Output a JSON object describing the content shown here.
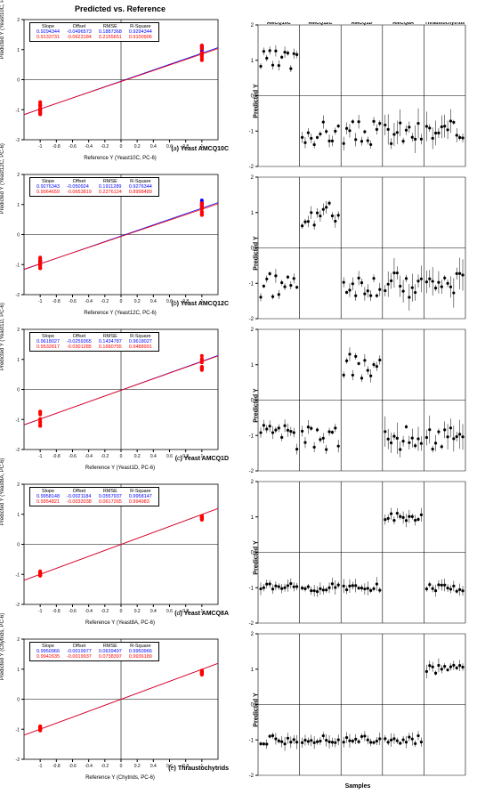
{
  "main_title": "Predicted vs. Reference",
  "left_panels": [
    {
      "id": "a",
      "name": "Yeast AMCQ10C",
      "ylabel": "Predicted Y (Yeast10C, PC-6)",
      "xlabel": "Reference Y (Yeast10C, PC-6)",
      "stats": {
        "headers": [
          "Slope",
          "Offset",
          "RMSE",
          "R-Square"
        ],
        "blue": [
          "0.9294344",
          "-0.0496573",
          "0.1887368",
          "0.9294344"
        ],
        "red": [
          "0.9133731",
          "-0.0623184",
          "0.2155651",
          "0.9100906"
        ]
      }
    },
    {
      "id": "b",
      "name": "Yeast AMCQ12C",
      "ylabel": "Predicted Y (Yeast12C, PC-6)",
      "xlabel": "Reference Y (Yeast12C, PC-6)",
      "stats": {
        "headers": [
          "Slope",
          "Offset",
          "RMSE",
          "R-Square"
        ],
        "blue": [
          "0.9276343",
          "-0.050924",
          "0.1911289",
          "0.9276344"
        ],
        "red": [
          "0.9064659",
          "-0.0653819",
          "0.2276124",
          "0.8998489"
        ]
      }
    },
    {
      "id": "c",
      "name": "Yeast AMCQ1D",
      "ylabel": "Predicted Y (Yeast1D, PC-6)",
      "xlabel": "Reference Y (Yeast1D, PC-6)",
      "stats": {
        "headers": [
          "Slope",
          "Offset",
          "RMSE",
          "R-Square"
        ],
        "blue": [
          "0.9618027",
          "-0.0259365",
          "0.1434787",
          "0.9618027"
        ],
        "red": [
          "0.9532817",
          "-0.0301285",
          "0.1690755",
          "0.9488991"
        ]
      }
    },
    {
      "id": "d",
      "name": "Yeast AMCQ8A",
      "ylabel": "Predicted Y (Yeast8A, PC-6)",
      "xlabel": "Reference Y (Yeast8A, PC-6)",
      "stats": {
        "headers": [
          "Slope",
          "Offset",
          "RMSE",
          "R-Square"
        ],
        "blue": [
          "0.9958148",
          "-0.0021184",
          "0.0557937",
          "0.9958147"
        ],
        "red": [
          "0.9954821",
          "-0.0033038",
          "0.0617265",
          "0.994983"
        ]
      }
    },
    {
      "id": "e",
      "name": "Thraustochytrids",
      "ylabel": "Predicted Y (Chytrids, PC-6)",
      "xlabel": "Reference Y (Chytrids, PC-6)",
      "stats": {
        "headers": [
          "Slope",
          "Offset",
          "RMSE",
          "R-Square"
        ],
        "blue": [
          "0.9950966",
          "-0.0019977",
          "0.0639497",
          "0.9950966"
        ],
        "red": [
          "0.9942635",
          "-0.0019937",
          "0.0738397",
          "0.9936189"
        ]
      }
    }
  ],
  "right_headers": [
    "AMCQ10C",
    "AMCQ12C",
    "AMCQ1D",
    "AMCQ8A",
    "Thraustochytrids"
  ],
  "right_ylabel": "Predicted Y",
  "right_xlabel": "Samples",
  "colors": {
    "blue_line": "#0000ff",
    "red_line": "#ff0000",
    "red_marker": "#ff0000",
    "black_marker": "#000000",
    "grid": "#000000"
  },
  "axis": {
    "xlim": [
      -1.2,
      1.2
    ],
    "ylim": [
      -2,
      2
    ],
    "xticks": [
      -1,
      -0.8,
      -0.6,
      -0.4,
      -0.2,
      0,
      0.2,
      0.4,
      0.6,
      0.8,
      1
    ]
  }
}
